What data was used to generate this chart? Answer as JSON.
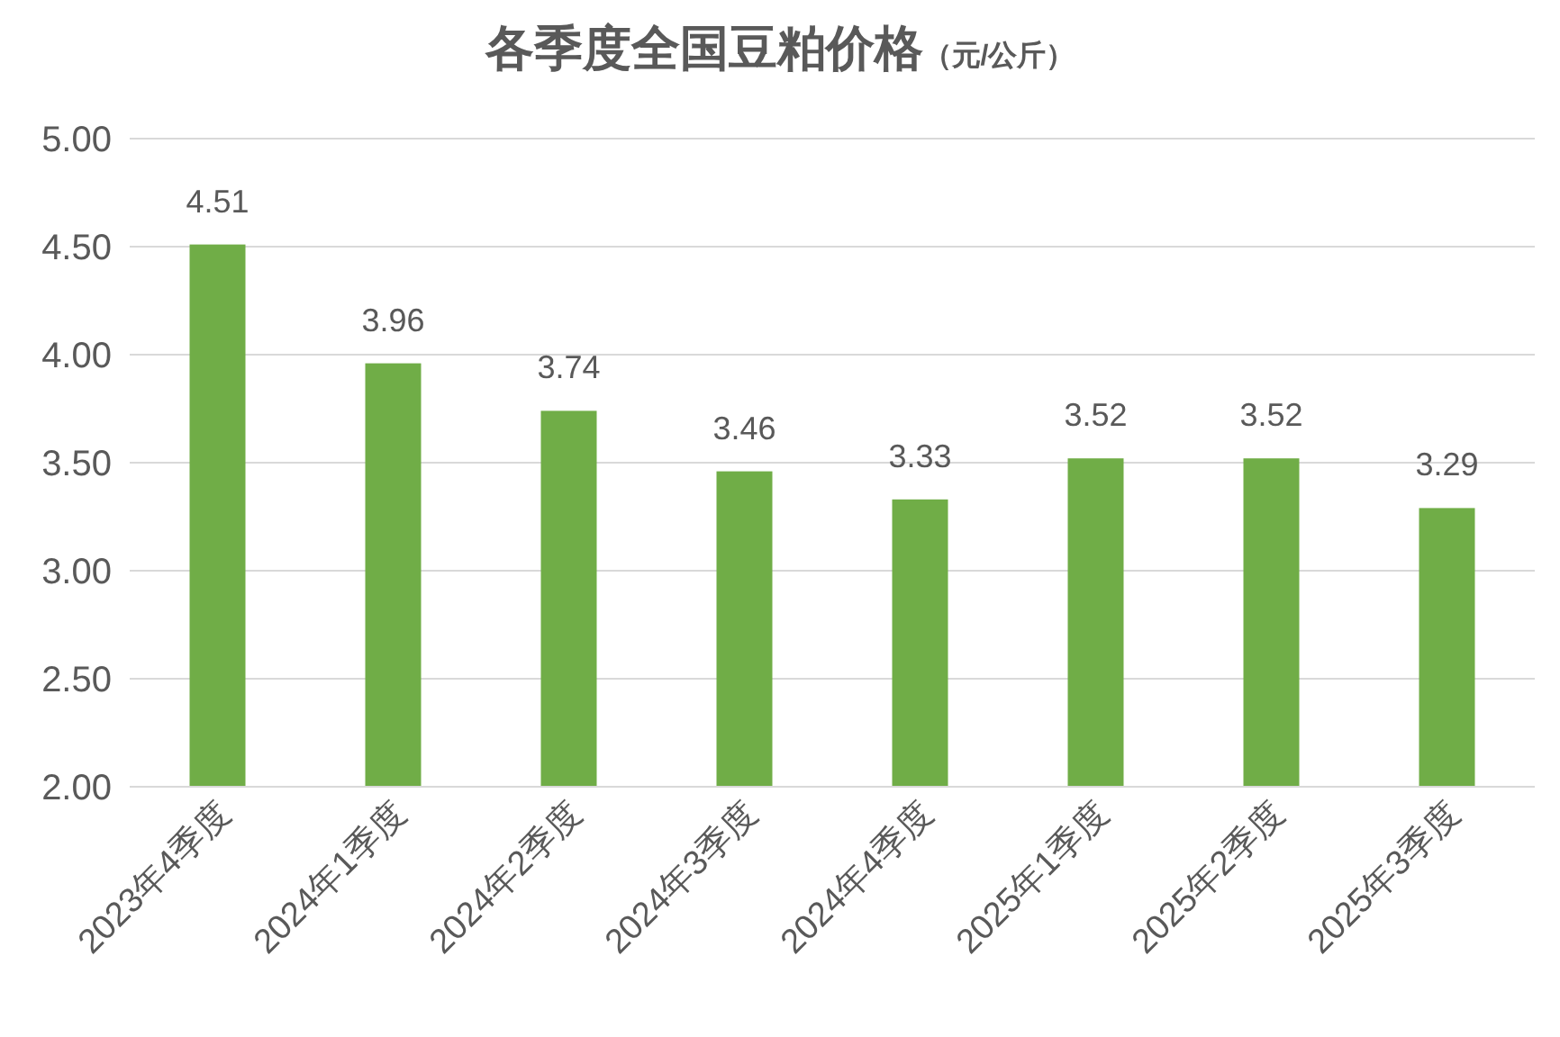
{
  "chart_data": {
    "type": "bar",
    "title": "各季度全国豆粕价格",
    "subtitle": "（元/公斤）",
    "categories": [
      "2023年4季度",
      "2024年1季度",
      "2024年2季度",
      "2024年3季度",
      "2024年4季度",
      "2025年1季度",
      "2025年2季度",
      "2025年3季度"
    ],
    "values": [
      4.51,
      3.96,
      3.74,
      3.46,
      3.33,
      3.52,
      3.52,
      3.29
    ],
    "color": "#70ad47",
    "ylim": [
      2,
      5
    ],
    "yticks": [
      {
        "value": 2,
        "label": "2.00"
      },
      {
        "value": 2.5,
        "label": "2.50"
      },
      {
        "value": 3,
        "label": "3.00"
      },
      {
        "value": 3.5,
        "label": "3.50"
      },
      {
        "value": 4,
        "label": "4.00"
      },
      {
        "value": 4.5,
        "label": "4.50"
      },
      {
        "value": 5,
        "label": "5.00"
      }
    ],
    "grid": "y",
    "data_labels": true
  }
}
